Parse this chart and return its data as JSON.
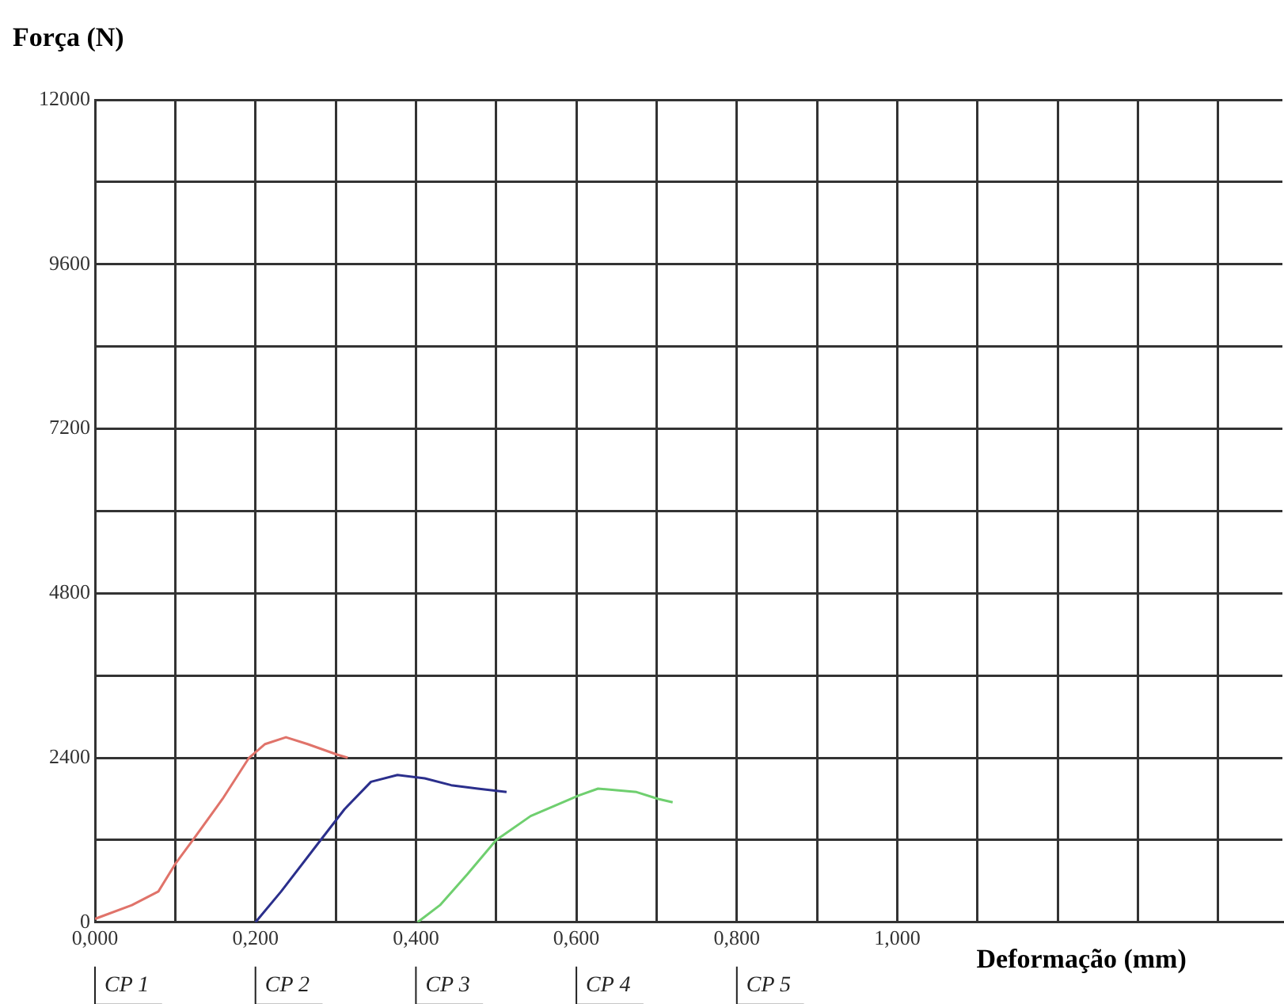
{
  "chart_data": {
    "type": "line",
    "ylabel": "Força (N)",
    "xlabel": "Deformação (mm)",
    "xlim": [
      0,
      1.48
    ],
    "ylim": [
      0,
      12000
    ],
    "xticks": [
      {
        "value": 0,
        "label": "0,000"
      },
      {
        "value": 0.1,
        "label": null
      },
      {
        "value": 0.2,
        "label": "0,200"
      },
      {
        "value": 0.3,
        "label": null
      },
      {
        "value": 0.4,
        "label": "0,400"
      },
      {
        "value": 0.5,
        "label": null
      },
      {
        "value": 0.6,
        "label": "0,600"
      },
      {
        "value": 0.7,
        "label": null
      },
      {
        "value": 0.8,
        "label": "0,800"
      },
      {
        "value": 0.9,
        "label": null
      },
      {
        "value": 1.0,
        "label": "1,000"
      },
      {
        "value": 1.1,
        "label": null
      },
      {
        "value": 1.2,
        "label": null
      },
      {
        "value": 1.3,
        "label": null
      },
      {
        "value": 1.4,
        "label": null
      }
    ],
    "yticks": [
      0,
      {
        "value": 1200,
        "label": null
      },
      2400,
      {
        "value": 3600,
        "label": null
      },
      4800,
      {
        "value": 6000,
        "label": null
      },
      7200,
      {
        "value": 8400,
        "label": null
      },
      9600,
      {
        "value": 10800,
        "label": null
      },
      12000
    ],
    "grid": true,
    "legend": false,
    "marker": "none",
    "line_style": "solid",
    "series": [
      {
        "color": "#e0736a",
        "x": [
          0,
          0.046,
          0.079,
          0.1,
          0.122,
          0.159,
          0.192,
          0.212,
          0.238,
          0.265,
          0.301,
          0.315
        ],
        "values": [
          50,
          250,
          450,
          850,
          1200,
          1800,
          2400,
          2600,
          2700,
          2600,
          2450,
          2400
        ]
      },
      {
        "color": "#2b2f8c",
        "x": [
          0.2,
          0.232,
          0.278,
          0.311,
          0.344,
          0.377,
          0.411,
          0.444,
          0.477,
          0.513
        ],
        "values": [
          0,
          450,
          1150,
          1650,
          2050,
          2150,
          2100,
          2000,
          1950,
          1900
        ]
      },
      {
        "color": "#6fcf6f",
        "x": [
          0.402,
          0.43,
          0.464,
          0.5,
          0.543,
          0.603,
          0.627,
          0.675,
          0.702,
          0.72
        ],
        "values": [
          0,
          250,
          700,
          1200,
          1550,
          1850,
          1950,
          1900,
          1800,
          1750
        ]
      }
    ],
    "annotations": [
      "CP 1",
      "CP 2",
      "CP 3",
      "CP 4",
      "CP 5"
    ]
  }
}
